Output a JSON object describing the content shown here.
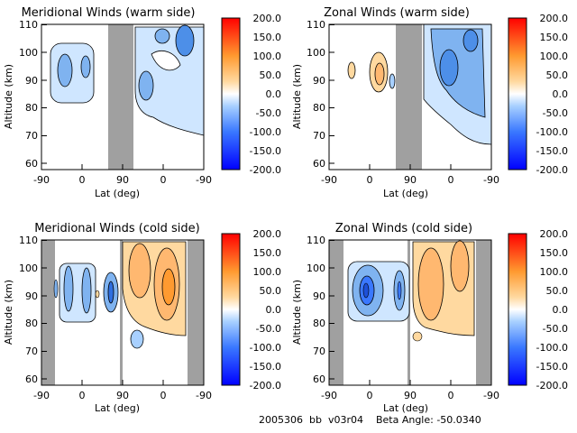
{
  "figure": {
    "footer": "2005306  bb  v03r04    Beta Angle: -50.0340"
  },
  "colorbar": {
    "ticks": [
      "200.0",
      "150.0",
      "100.0",
      "50.0",
      "0.0",
      "-50.0",
      "-100.0",
      "-150.0",
      "-200.0"
    ],
    "range": [
      -200,
      200
    ],
    "colors": [
      "#0000ff",
      "#3a78ff",
      "#a8d0ff",
      "#ffffff",
      "#ffd9a0",
      "#ff9a30",
      "#ff0000"
    ]
  },
  "chart_data": [
    {
      "type": "heatmap",
      "title": "Meridional Winds (warm side)",
      "xlabel": "Lat (deg)",
      "ylabel": "Altitude (km)",
      "x_ticks": [
        "-90",
        "0",
        "90",
        "0",
        "-90"
      ],
      "y_ticks": [
        "110",
        "100",
        "90",
        "80",
        "70",
        "60"
      ],
      "ylim": [
        59,
        111
      ]
    },
    {
      "type": "heatmap",
      "title": "Zonal Winds (warm side)",
      "xlabel": "Lat (deg)",
      "ylabel": "Altitude (km)",
      "x_ticks": [
        "-90",
        "0",
        "90",
        "0",
        "-90"
      ],
      "y_ticks": [
        "110",
        "100",
        "90",
        "80",
        "70",
        "60"
      ],
      "ylim": [
        59,
        111
      ]
    },
    {
      "type": "heatmap",
      "title": "Meridional Winds (cold side)",
      "xlabel": "Lat (deg)",
      "ylabel": "Altitude (km)",
      "x_ticks": [
        "-90",
        "0",
        "90",
        "0",
        "-90"
      ],
      "y_ticks": [
        "110",
        "100",
        "90",
        "80",
        "70",
        "60"
      ],
      "ylim": [
        59,
        111
      ]
    },
    {
      "type": "heatmap",
      "title": "Zonal Winds (cold side)",
      "xlabel": "Lat (deg)",
      "ylabel": "Altitude (km)",
      "x_ticks": [
        "-90",
        "0",
        "90",
        "0",
        "-90"
      ],
      "y_ticks": [
        "110",
        "100",
        "90",
        "80",
        "70",
        "60"
      ],
      "ylim": [
        59,
        111
      ]
    }
  ]
}
